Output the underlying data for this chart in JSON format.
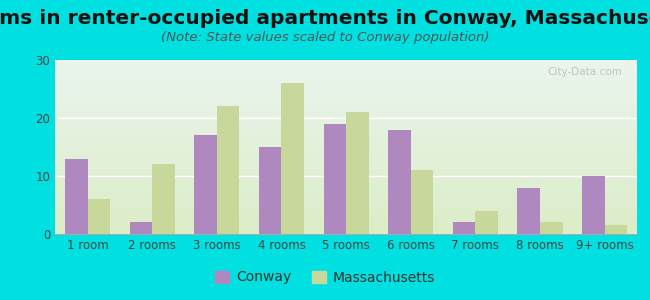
{
  "title": "Rooms in renter-occupied apartments in Conway, Massachusetts",
  "subtitle": "(Note: State values scaled to Conway population)",
  "categories": [
    "1 room",
    "2 rooms",
    "3 rooms",
    "4 rooms",
    "5 rooms",
    "6 rooms",
    "7 rooms",
    "8 rooms",
    "9+ rooms"
  ],
  "conway_values": [
    13,
    2,
    17,
    15,
    19,
    18,
    2,
    8,
    10
  ],
  "mass_values": [
    6,
    12,
    22,
    26,
    21,
    11,
    4,
    2,
    1.5
  ],
  "conway_color": "#b088c0",
  "mass_color": "#c8d89a",
  "background_outer": "#00e0e0",
  "background_inner_top": "#eaf5ee",
  "background_inner_bottom": "#dcedc8",
  "ylim": [
    0,
    30
  ],
  "yticks": [
    0,
    10,
    20,
    30
  ],
  "bar_width": 0.35,
  "title_fontsize": 14.5,
  "subtitle_fontsize": 9.5,
  "legend_fontsize": 10,
  "tick_fontsize": 8.5,
  "watermark": "City-Data.com"
}
